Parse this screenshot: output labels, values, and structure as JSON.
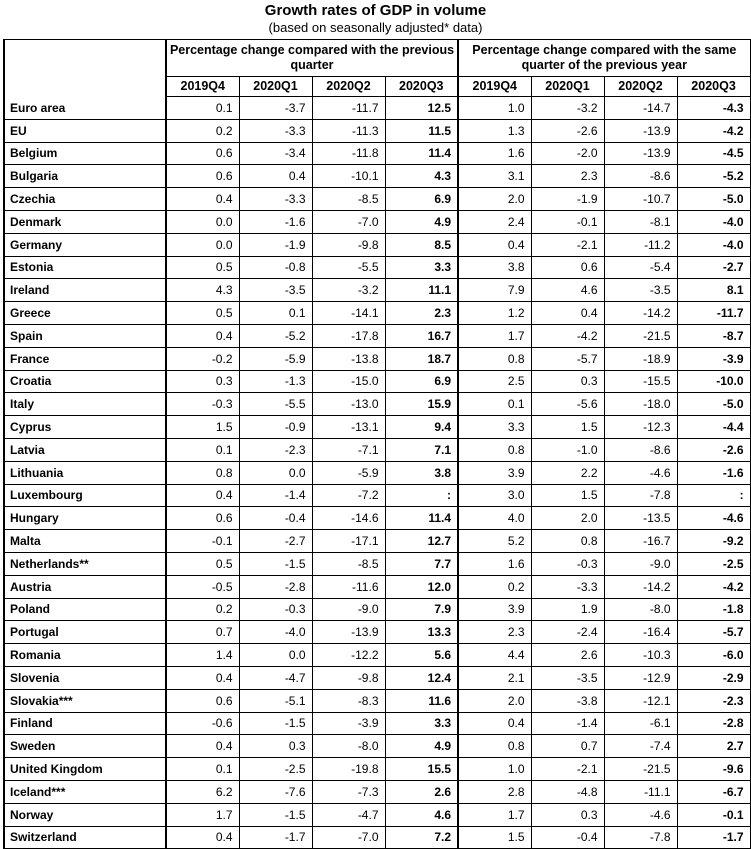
{
  "title": "Growth rates of GDP in volume",
  "subtitle": "(based on seasonally adjusted* data)",
  "group_headers": {
    "quarter": "Percentage change compared with the previous quarter",
    "year": "Percentage change compared with the same quarter of the previous year"
  },
  "periods": [
    "2019Q4",
    "2020Q1",
    "2020Q2",
    "2020Q3",
    "2019Q4",
    "2020Q1",
    "2020Q2",
    "2020Q3"
  ],
  "rows": [
    {
      "country": "Euro area",
      "values": [
        "0.1",
        "-3.7",
        "-11.7",
        "12.5",
        "1.0",
        "-3.2",
        "-14.7",
        "-4.3"
      ]
    },
    {
      "country": "EU",
      "values": [
        "0.2",
        "-3.3",
        "-11.3",
        "11.5",
        "1.3",
        "-2.6",
        "-13.9",
        "-4.2"
      ]
    },
    {
      "country": "Belgium",
      "values": [
        "0.6",
        "-3.4",
        "-11.8",
        "11.4",
        "1.6",
        "-2.0",
        "-13.9",
        "-4.5"
      ]
    },
    {
      "country": "Bulgaria",
      "values": [
        "0.6",
        "0.4",
        "-10.1",
        "4.3",
        "3.1",
        "2.3",
        "-8.6",
        "-5.2"
      ]
    },
    {
      "country": "Czechia",
      "values": [
        "0.4",
        "-3.3",
        "-8.5",
        "6.9",
        "2.0",
        "-1.9",
        "-10.7",
        "-5.0"
      ]
    },
    {
      "country": "Denmark",
      "values": [
        "0.0",
        "-1.6",
        "-7.0",
        "4.9",
        "2.4",
        "-0.1",
        "-8.1",
        "-4.0"
      ]
    },
    {
      "country": "Germany",
      "values": [
        "0.0",
        "-1.9",
        "-9.8",
        "8.5",
        "0.4",
        "-2.1",
        "-11.2",
        "-4.0"
      ]
    },
    {
      "country": "Estonia",
      "values": [
        "0.5",
        "-0.8",
        "-5.5",
        "3.3",
        "3.8",
        "0.6",
        "-5.4",
        "-2.7"
      ]
    },
    {
      "country": "Ireland",
      "values": [
        "4.3",
        "-3.5",
        "-3.2",
        "11.1",
        "7.9",
        "4.6",
        "-3.5",
        "8.1"
      ]
    },
    {
      "country": "Greece",
      "values": [
        "0.5",
        "0.1",
        "-14.1",
        "2.3",
        "1.2",
        "0.4",
        "-14.2",
        "-11.7"
      ]
    },
    {
      "country": "Spain",
      "values": [
        "0.4",
        "-5.2",
        "-17.8",
        "16.7",
        "1.7",
        "-4.2",
        "-21.5",
        "-8.7"
      ]
    },
    {
      "country": "France",
      "values": [
        "-0.2",
        "-5.9",
        "-13.8",
        "18.7",
        "0.8",
        "-5.7",
        "-18.9",
        "-3.9"
      ]
    },
    {
      "country": "Croatia",
      "values": [
        "0.3",
        "-1.3",
        "-15.0",
        "6.9",
        "2.5",
        "0.3",
        "-15.5",
        "-10.0"
      ]
    },
    {
      "country": "Italy",
      "values": [
        "-0.3",
        "-5.5",
        "-13.0",
        "15.9",
        "0.1",
        "-5.6",
        "-18.0",
        "-5.0"
      ]
    },
    {
      "country": "Cyprus",
      "values": [
        "1.5",
        "-0.9",
        "-13.1",
        "9.4",
        "3.3",
        "1.5",
        "-12.3",
        "-4.4"
      ]
    },
    {
      "country": "Latvia",
      "values": [
        "0.1",
        "-2.3",
        "-7.1",
        "7.1",
        "0.8",
        "-1.0",
        "-8.6",
        "-2.6"
      ]
    },
    {
      "country": "Lithuania",
      "values": [
        "0.8",
        "0.0",
        "-5.9",
        "3.8",
        "3.9",
        "2.2",
        "-4.6",
        "-1.6"
      ]
    },
    {
      "country": "Luxembourg",
      "values": [
        "0.4",
        "-1.4",
        "-7.2",
        ":",
        "3.0",
        "1.5",
        "-7.8",
        ":"
      ]
    },
    {
      "country": "Hungary",
      "values": [
        "0.6",
        "-0.4",
        "-14.6",
        "11.4",
        "4.0",
        "2.0",
        "-13.5",
        "-4.6"
      ]
    },
    {
      "country": "Malta",
      "values": [
        "-0.1",
        "-2.7",
        "-17.1",
        "12.7",
        "5.2",
        "0.8",
        "-16.7",
        "-9.2"
      ]
    },
    {
      "country": "Netherlands**",
      "values": [
        "0.5",
        "-1.5",
        "-8.5",
        "7.7",
        "1.6",
        "-0.3",
        "-9.0",
        "-2.5"
      ]
    },
    {
      "country": "Austria",
      "values": [
        "-0.5",
        "-2.8",
        "-11.6",
        "12.0",
        "0.2",
        "-3.3",
        "-14.2",
        "-4.2"
      ]
    },
    {
      "country": "Poland",
      "values": [
        "0.2",
        "-0.3",
        "-9.0",
        "7.9",
        "3.9",
        "1.9",
        "-8.0",
        "-1.8"
      ]
    },
    {
      "country": "Portugal",
      "values": [
        "0.7",
        "-4.0",
        "-13.9",
        "13.3",
        "2.3",
        "-2.4",
        "-16.4",
        "-5.7"
      ]
    },
    {
      "country": "Romania",
      "values": [
        "1.4",
        "0.0",
        "-12.2",
        "5.6",
        "4.4",
        "2.6",
        "-10.3",
        "-6.0"
      ]
    },
    {
      "country": "Slovenia",
      "values": [
        "0.4",
        "-4.7",
        "-9.8",
        "12.4",
        "2.1",
        "-3.5",
        "-12.9",
        "-2.9"
      ]
    },
    {
      "country": "Slovakia***",
      "values": [
        "0.6",
        "-5.1",
        "-8.3",
        "11.6",
        "2.0",
        "-3.8",
        "-12.1",
        "-2.3"
      ]
    },
    {
      "country": "Finland",
      "values": [
        "-0.6",
        "-1.5",
        "-3.9",
        "3.3",
        "0.4",
        "-1.4",
        "-6.1",
        "-2.8"
      ]
    },
    {
      "country": "Sweden",
      "values": [
        "0.4",
        "0.3",
        "-8.0",
        "4.9",
        "0.8",
        "0.7",
        "-7.4",
        "2.7"
      ]
    },
    {
      "country": "United Kingdom",
      "values": [
        "0.1",
        "-2.5",
        "-19.8",
        "15.5",
        "1.0",
        "-2.1",
        "-21.5",
        "-9.6"
      ]
    },
    {
      "country": "Iceland***",
      "values": [
        "6.2",
        "-7.6",
        "-7.3",
        "2.6",
        "2.8",
        "-4.8",
        "-11.1",
        "-6.7"
      ]
    },
    {
      "country": "Norway",
      "values": [
        "1.7",
        "-1.5",
        "-4.7",
        "4.6",
        "1.7",
        "0.3",
        "-4.6",
        "-0.1"
      ]
    },
    {
      "country": "Switzerland",
      "values": [
        "0.4",
        "-1.7",
        "-7.0",
        "7.2",
        "1.5",
        "-0.4",
        "-7.8",
        "-1.7"
      ]
    }
  ]
}
